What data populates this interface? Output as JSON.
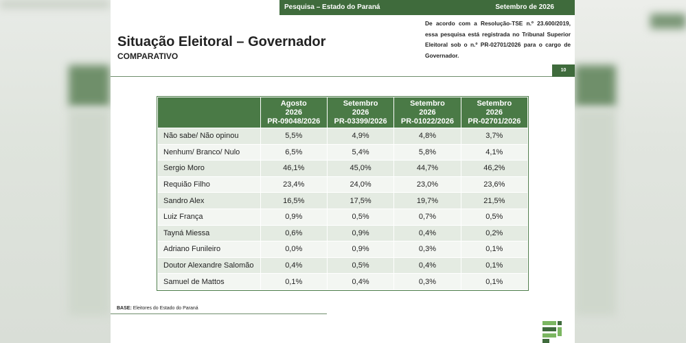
{
  "top_bar": {
    "left": "Pesquisa – Estado do Paraná",
    "right": "Setembro de 2026"
  },
  "title": "Situação Eleitoral – Governador",
  "subtitle": "COMPARATIVO",
  "note": "De acordo com a Resolução-TSE n.º 23.600/2019, essa pesquisa está registrada no Tribunal Superior Eleitoral sob o n.º PR-02701/2026 para o cargo de Governador.",
  "page_number": "10",
  "table": {
    "columns": [
      {
        "line1": "Agosto",
        "line2": "2026",
        "line3": "PR-09048/2026"
      },
      {
        "line1": "Setembro",
        "line2": "2026",
        "line3": "PR-03399/2026"
      },
      {
        "line1": "Setembro",
        "line2": "2026",
        "line3": "PR-01022/2026"
      },
      {
        "line1": "Setembro",
        "line2": "2026",
        "line3": "PR-02701/2026"
      }
    ],
    "rows": [
      {
        "name": "Não sabe/ Não opinou",
        "values": [
          "5,5%",
          "4,9%",
          "4,8%",
          "3,7%"
        ]
      },
      {
        "name": "Nenhum/ Branco/ Nulo",
        "values": [
          "6,5%",
          "5,4%",
          "5,8%",
          "4,1%"
        ]
      },
      {
        "name": "Sergio Moro",
        "values": [
          "46,1%",
          "45,0%",
          "44,7%",
          "46,2%"
        ]
      },
      {
        "name": "Requião Filho",
        "values": [
          "23,4%",
          "24,0%",
          "23,0%",
          "23,6%"
        ]
      },
      {
        "name": "Sandro Alex",
        "values": [
          "16,5%",
          "17,5%",
          "19,7%",
          "21,5%"
        ]
      },
      {
        "name": "Luiz França",
        "values": [
          "0,9%",
          "0,5%",
          "0,7%",
          "0,5%"
        ]
      },
      {
        "name": "Tayná Miessa",
        "values": [
          "0,6%",
          "0,9%",
          "0,4%",
          "0,2%"
        ]
      },
      {
        "name": "Adriano Funileiro",
        "values": [
          "0,0%",
          "0,9%",
          "0,3%",
          "0,1%"
        ]
      },
      {
        "name": "Doutor Alexandre Salomão",
        "values": [
          "0,4%",
          "0,5%",
          "0,4%",
          "0,1%"
        ]
      },
      {
        "name": "Samuel de Mattos",
        "values": [
          "0,1%",
          "0,4%",
          "0,3%",
          "0,1%"
        ]
      }
    ]
  },
  "base": {
    "label": "BASE:",
    "text": "Eleitores do Estado do Paraná"
  },
  "colors": {
    "brand_green": "#3f6b3c",
    "header_green": "#4a7a46",
    "row_odd": "#e4ebe2",
    "row_even": "#f3f6f2"
  },
  "icons": [
    "institute-logo"
  ]
}
